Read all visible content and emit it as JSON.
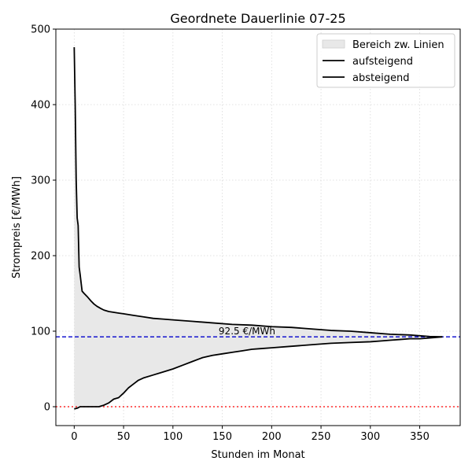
{
  "chart_data": {
    "type": "line",
    "title": "Geordnete Dauerlinie 07-25",
    "xlabel": "Stunden im Monat",
    "ylabel": "Strompreis [€/MWh]",
    "xlim": [
      -18.6,
      391
    ],
    "ylim": [
      -25,
      500
    ],
    "xticks": [
      0,
      50,
      100,
      150,
      200,
      250,
      300,
      350
    ],
    "yticks": [
      0,
      100,
      200,
      300,
      400,
      500
    ],
    "grid": true,
    "legend_position": "top-right",
    "legend": [
      "Bereich zw. Linien",
      "aufsteigend",
      "absteigend"
    ],
    "colors": {
      "line": "#000000",
      "fill": "#e8e8e8",
      "mean": "#0000cc",
      "zero": "#ff0000",
      "grid": "#d9d9d9"
    },
    "series": [
      {
        "name": "absteigend",
        "x": [
          0,
          1,
          2,
          3,
          4,
          5,
          6,
          8,
          10,
          13,
          15,
          17,
          20,
          23,
          27,
          30,
          35,
          40,
          45,
          50,
          60,
          70,
          80,
          90,
          100,
          120,
          140,
          160,
          180,
          200,
          220,
          240,
          260,
          280,
          300,
          320,
          340,
          360,
          373
        ],
        "y": [
          476,
          400,
          300,
          250,
          240,
          185,
          175,
          153,
          150,
          146,
          143,
          140,
          136,
          133,
          130,
          128,
          126,
          125,
          124,
          123,
          121,
          119,
          117,
          116,
          115,
          113,
          111,
          109,
          108,
          106,
          105,
          103,
          101,
          100,
          98,
          96,
          95,
          93,
          92.5
        ]
      },
      {
        "name": "aufsteigend",
        "x": [
          0,
          3,
          6,
          10,
          15,
          20,
          25,
          30,
          35,
          40,
          45,
          50,
          55,
          60,
          65,
          70,
          80,
          90,
          100,
          110,
          120,
          130,
          140,
          150,
          160,
          170,
          180,
          190,
          200,
          220,
          240,
          260,
          280,
          300,
          310,
          320,
          330,
          340,
          350,
          360,
          373
        ],
        "y": [
          -3,
          -2,
          0,
          0,
          0,
          0,
          0,
          2,
          5,
          10,
          12,
          18,
          25,
          30,
          35,
          38,
          42,
          46,
          50,
          55,
          60,
          65,
          68,
          70,
          72,
          74,
          76,
          77,
          78,
          80,
          82,
          84,
          85,
          86,
          87,
          88,
          89,
          90,
          90,
          91,
          92.5
        ]
      }
    ],
    "hlines": [
      {
        "y": 92.5,
        "style": "dashed",
        "color": "#0000cc",
        "label": "92.5 €/MWh"
      },
      {
        "y": 0,
        "style": "dotted",
        "color": "#ff0000"
      }
    ]
  }
}
